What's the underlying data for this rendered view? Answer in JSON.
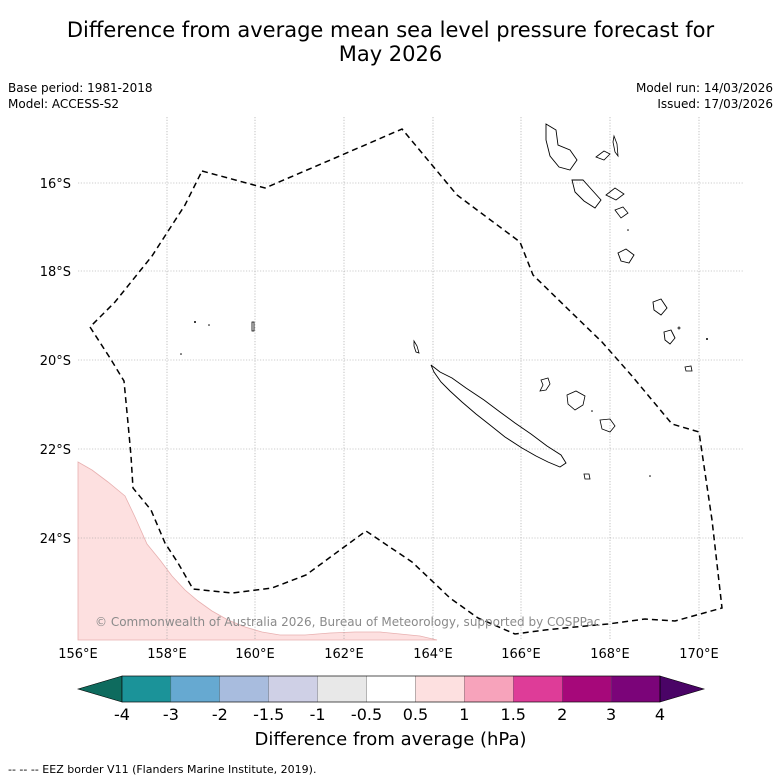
{
  "title_line1": "Difference from average mean sea level pressure forecast for",
  "title_line2": "May 2026",
  "base_period": "Base period: 1981-2018",
  "model": "Model: ACCESS-S2",
  "model_run": "Model run: 14/03/2026",
  "issued": "Issued: 17/03/2026",
  "lat_ticks": [
    "16°S",
    "18°S",
    "20°S",
    "22°S",
    "24°S"
  ],
  "lon_ticks": [
    "156°E",
    "158°E",
    "160°E",
    "162°E",
    "164°E",
    "166°E",
    "168°E",
    "170°E"
  ],
  "credit": "© Commonwealth of Australia 2026, Bureau of Meteorology, supported by COSPPac",
  "colorbar": {
    "labels": [
      "-4",
      "-3",
      "-2",
      "-1.5",
      "-1",
      "-0.5",
      "0.5",
      "1",
      "1.5",
      "2",
      "3",
      "4"
    ],
    "colors": [
      "#0e6b5e",
      "#1b9399",
      "#66a9d1",
      "#a8bcde",
      "#cfd0e6",
      "#e8e8e8",
      "#ffffff",
      "#fde0e0",
      "#f7a3bb",
      "#de3c98",
      "#a6087a",
      "#7b0479",
      "#4a0466"
    ],
    "title": "Difference from average (hPa)"
  },
  "footnote": "--  --  -- EEZ border V11 (Flanders Marine Institute, 2019).",
  "colors": {
    "positive_anomaly_fill": "#fde0e0",
    "positive_anomaly_edge": "#e8b0b0",
    "grid": "#9a9a9a",
    "coastline": "#000000"
  }
}
